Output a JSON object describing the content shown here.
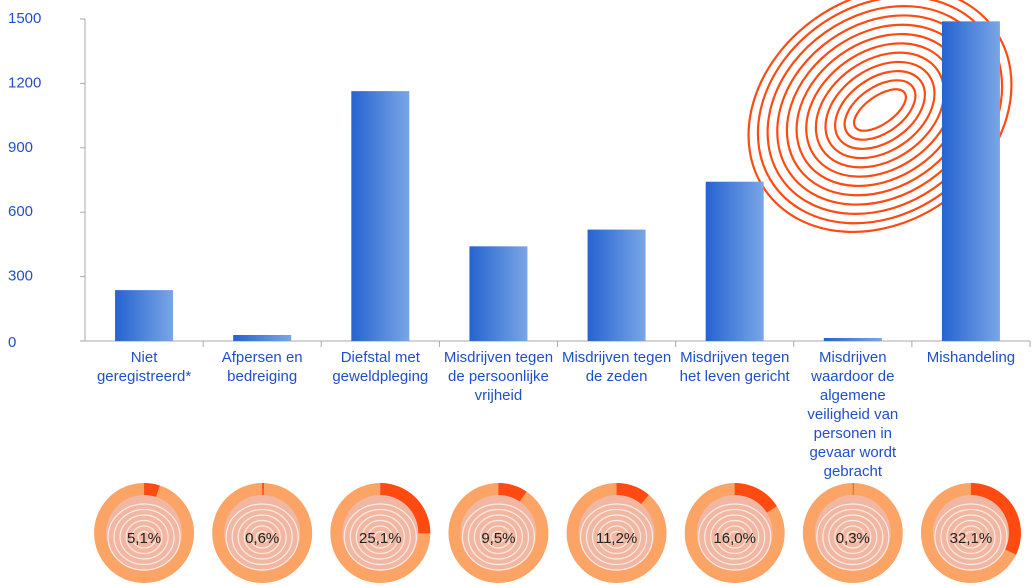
{
  "chart_data": [
    {
      "type": "bar",
      "categories": [
        "Niet geregistreerd*",
        "Afpersen en bedreiging",
        "Diefstal met geweldpleging",
        "Misdrijven tegen de persoonlijke vrijheid",
        "Misdrijven tegen de zeden",
        "Misdrijven tegen het leven gericht",
        "Misdrijven waardoor de algemene veiligheid van personen in gevaar wordt gebracht",
        "Mishandeling"
      ],
      "values": [
        237,
        28,
        1164,
        441,
        519,
        742,
        14,
        1489
      ],
      "color": "#3a78d8",
      "ylim": [
        0,
        1500
      ],
      "yticks": [
        0,
        300,
        600,
        900,
        1200,
        1500
      ],
      "grid": false
    },
    {
      "type": "donut",
      "values": [
        5.1,
        0.6,
        25.1,
        9.5,
        11.2,
        16.0,
        0.3,
        32.1
      ],
      "value_labels": [
        "5,1%",
        "0,6%",
        "25,1%",
        "9,5%",
        "11,2%",
        "16,0%",
        "0,3%",
        "32,1%"
      ],
      "color": "#ff4a12",
      "ring_color": "#fba466"
    }
  ]
}
